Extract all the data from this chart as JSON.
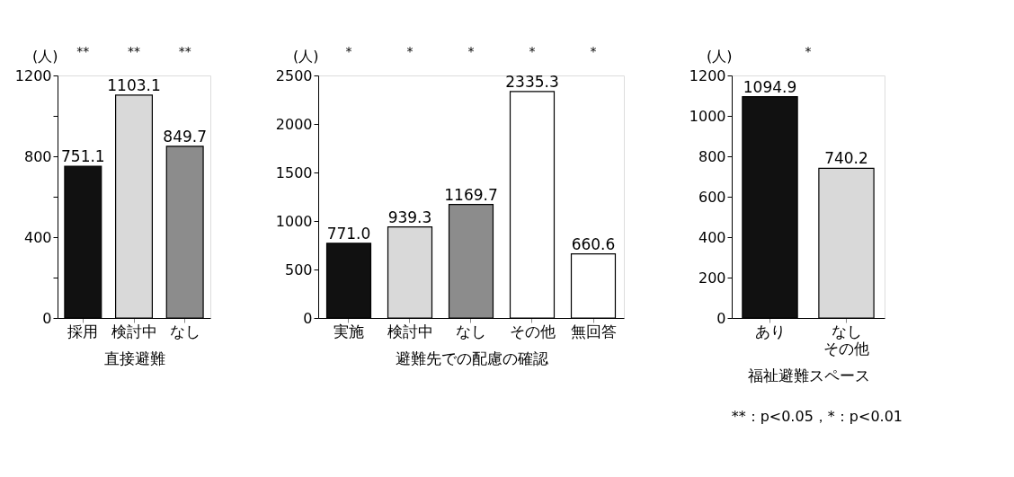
{
  "chart_data": [
    {
      "type": "bar",
      "xlabel": "直接避難",
      "ylabel": "(人)",
      "categories": [
        "採用",
        "検討中",
        "なし"
      ],
      "values": [
        751.1,
        1103.1,
        849.7
      ],
      "colors": [
        "#111111",
        "#d9d9d9",
        "#8c8c8c"
      ],
      "value_labels": [
        "751.1",
        "1103.1",
        "849.7"
      ],
      "ylim": [
        0,
        1200
      ],
      "yticks": [
        0,
        {
          "value": 200,
          "label": null
        },
        400,
        {
          "value": 600,
          "label": null
        },
        800,
        {
          "value": 1000,
          "label": null
        },
        1200
      ],
      "grid": false,
      "annotations": [
        "**",
        "**",
        "**"
      ]
    },
    {
      "type": "bar",
      "xlabel": "避難先での配慮の確認",
      "ylabel": "(人)",
      "categories": [
        "実施",
        "検討中",
        "なし",
        "その他",
        "無回答"
      ],
      "values": [
        771.0,
        939.3,
        1169.7,
        2335.3,
        660.6
      ],
      "colors": [
        "#111111",
        "#d9d9d9",
        "#8c8c8c",
        "#ffffff",
        "#ffffff"
      ],
      "value_labels": [
        "771.0",
        "939.3",
        "1169.7",
        "2335.3",
        "660.6"
      ],
      "ylim": [
        0,
        2500
      ],
      "yticks": [
        0,
        500,
        1000,
        1500,
        2000,
        2500
      ],
      "grid": false,
      "annotations": [
        "*",
        "*",
        "*",
        "*",
        "*"
      ]
    },
    {
      "type": "bar",
      "xlabel": "福祉避難スペース",
      "ylabel": "(人)",
      "categories": [
        "あり",
        "なしその他"
      ],
      "values": [
        1094.9,
        740.2
      ],
      "colors": [
        "#111111",
        "#d9d9d9"
      ],
      "value_labels": [
        "1094.9",
        "740.2"
      ],
      "ylim": [
        0,
        1200
      ],
      "yticks": [
        0,
        200,
        400,
        600,
        800,
        1000,
        1200
      ],
      "grid": false,
      "annotations": [
        "*",
        "**：p<0.05，*：p<0.01"
      ]
    }
  ]
}
